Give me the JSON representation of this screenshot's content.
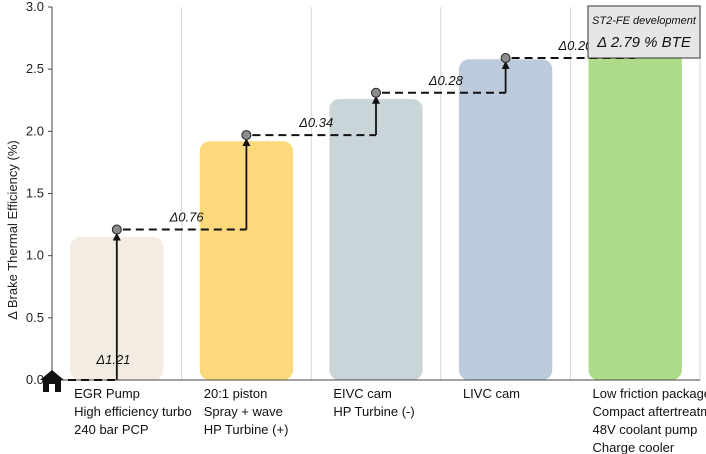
{
  "chart_data": {
    "type": "bar",
    "ylabel": "Δ Brake Thermal Efficiency (%)",
    "ylim": [
      0,
      3.0
    ],
    "yticks": [
      "0.0",
      "0.5",
      "1.0",
      "1.5",
      "2.0",
      "2.5",
      "3.0"
    ],
    "grid": "vertical",
    "categories": [
      [
        "EGR Pump",
        "High efficiency turbo",
        "240 bar PCP"
      ],
      [
        "20:1 piston",
        "Spray + wave",
        "HP Turbine (+)"
      ],
      [
        "EIVC cam",
        "HP Turbine (-)"
      ],
      [
        "LIVC cam"
      ],
      [
        "Low friction package",
        "Compact aftertreatment",
        "48V coolant pump",
        "Charge cooler"
      ]
    ],
    "values": [
      1.15,
      1.92,
      2.26,
      2.58,
      2.75
    ],
    "bar_colors": [
      "#f3ece3",
      "#fcd97a",
      "#c9d5d9",
      "#bccbdb",
      "#addb87"
    ],
    "cumulative_points": [
      0,
      1.21,
      1.97,
      2.31,
      2.59,
      2.79
    ],
    "increments": [
      "Δ1.21",
      "Δ0.76",
      "Δ0.34",
      "Δ0.28",
      "Δ0.20"
    ],
    "baseline_icon": "home-icon",
    "annotation": {
      "title": "ST2-FE development",
      "value": "Δ 2.79 % BTE"
    }
  }
}
